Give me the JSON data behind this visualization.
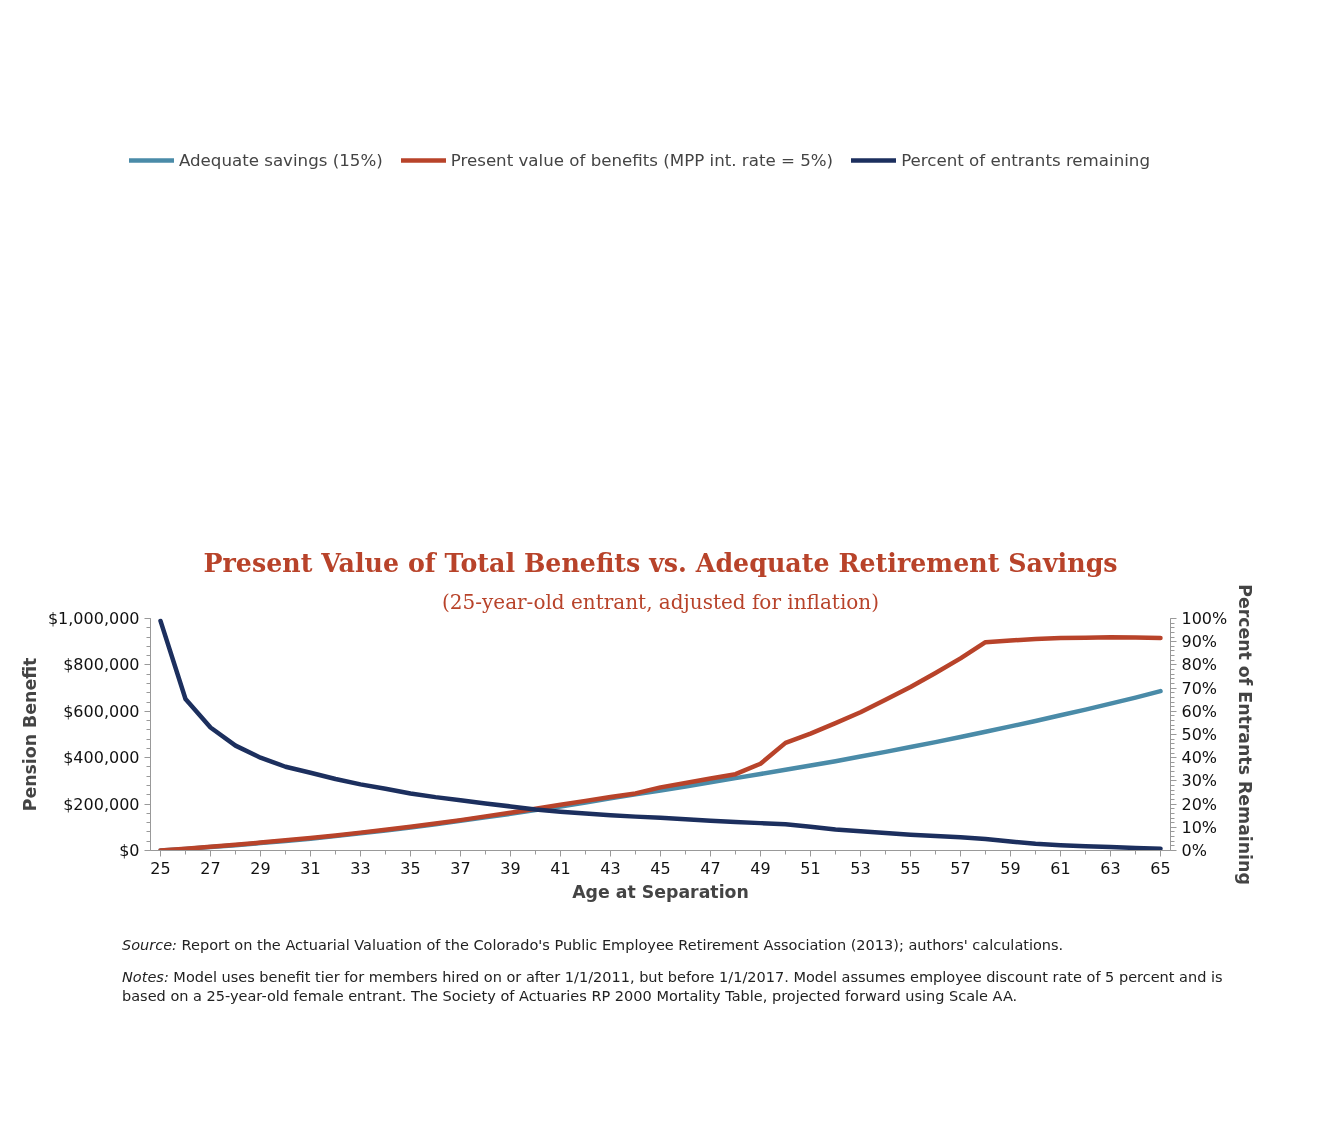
{
  "chart_data": {
    "type": "line",
    "title": "Present Value of Total Benefits vs. Adequate Retirement Savings",
    "subtitle": "(25-year-old entrant, adjusted for inflation)",
    "xlabel": "Age at Separation",
    "ylabel": "Pension Benefit",
    "y2label": "Percent of Entrants Remaining",
    "x": [
      25,
      26,
      27,
      28,
      29,
      30,
      31,
      32,
      33,
      34,
      35,
      36,
      37,
      38,
      39,
      40,
      41,
      42,
      43,
      44,
      45,
      46,
      47,
      48,
      49,
      50,
      51,
      52,
      53,
      54,
      55,
      56,
      57,
      58,
      59,
      60,
      61,
      62,
      63,
      64,
      65
    ],
    "series": [
      {
        "name": "Adequate savings (15%)",
        "color": "#4a8ba8",
        "values": [
          0,
          7000,
          15000,
          23000,
          32000,
          41000,
          51000,
          62000,
          74000,
          86000,
          99000,
          113000,
          128000,
          143000,
          158000,
          174000,
          190000,
          207000,
          225000,
          242000,
          258000,
          276000,
          294000,
          312000,
          330000,
          348000,
          366000,
          385000,
          405000,
          425000,
          446000,
          467000,
          489000,
          512000,
          535000,
          558000,
          583000,
          607000,
          633000,
          659000,
          687000
        ]
      },
      {
        "name": "Present value of benefits (MPP int. rate = 5%)",
        "color": "#b8432a",
        "values": [
          0,
          8000,
          16000,
          25000,
          34000,
          44000,
          54000,
          65000,
          77000,
          89000,
          102000,
          116000,
          131000,
          147000,
          163000,
          180000,
          197000,
          214000,
          231000,
          246000,
          272000,
          291000,
          310000,
          329000,
          374000,
          464000,
          504000,
          549000,
          596000,
          650000,
          705000,
          765000,
          828000,
          898000,
          905000,
          912000,
          916000,
          917000,
          919000,
          918000,
          916000
        ]
      },
      {
        "name": "Percent of entrants remaining",
        "color": "#1c2f5e",
        "axis": "y2",
        "values": [
          99,
          65.3,
          53.0,
          45.2,
          40.0,
          36.1,
          33.5,
          30.8,
          28.5,
          26.6,
          24.6,
          23.0,
          21.7,
          20.3,
          19.0,
          17.7,
          16.7,
          15.9,
          15.2,
          14.6,
          14.1,
          13.5,
          12.8,
          12.3,
          11.8,
          11.3,
          10.2,
          9.1,
          8.3,
          7.5,
          6.8,
          6.2,
          5.7,
          5.0,
          3.9,
          2.9,
          2.3,
          1.8,
          1.5,
          1.1,
          0.8
        ]
      }
    ],
    "xlim": [
      24.6,
      65.4
    ],
    "xticks": [
      25,
      27,
      29,
      31,
      33,
      35,
      37,
      39,
      41,
      43,
      45,
      47,
      49,
      51,
      53,
      55,
      57,
      59,
      61,
      63,
      65
    ],
    "ylim": [
      0,
      1000000
    ],
    "yticks": [
      {
        "value": 0,
        "label": "$0"
      },
      {
        "value": 200000,
        "label": "$200,000"
      },
      {
        "value": 400000,
        "label": "$400,000"
      },
      {
        "value": 600000,
        "label": "$600,000"
      },
      {
        "value": 800000,
        "label": "$800,000"
      },
      {
        "value": 1000000,
        "label": "$1,000,000"
      }
    ],
    "y2lim": [
      0,
      100
    ],
    "y2ticks": [
      {
        "value": 0,
        "label": "0%"
      },
      {
        "value": 10,
        "label": "10%"
      },
      {
        "value": 20,
        "label": "20%"
      },
      {
        "value": 30,
        "label": "30%"
      },
      {
        "value": 40,
        "label": "40%"
      },
      {
        "value": 50,
        "label": "50%"
      },
      {
        "value": 60,
        "label": "60%"
      },
      {
        "value": 70,
        "label": "70%"
      },
      {
        "value": 80,
        "label": "80%"
      },
      {
        "value": 90,
        "label": "90%"
      },
      {
        "value": 100,
        "label": "100%"
      }
    ],
    "grid": false,
    "legend": "top",
    "marker": "none",
    "line_style": "solid",
    "annotations": [
      "Source: Report on the Actuarial Valuation of the Colorado's Public Employee Retirement Association (2013); authors' calculations.",
      "Notes: Model uses benefit tier for members hired on or after 1/1/2011, but before 1/1/2017. Model assumes employee discount rate of 5 percent and is based on a 25-year-old female entrant. The Society of Actuaries RP 2000 Mortality Table, projected forward using Scale AA."
    ]
  }
}
